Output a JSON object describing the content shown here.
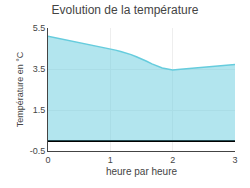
{
  "chart_data": {
    "type": "area",
    "title": "Evolution de la température",
    "xlabel": "heure par heure",
    "ylabel": "Température en °C",
    "x": [
      0,
      0.083,
      0.167,
      0.25,
      0.333,
      0.417,
      0.5,
      0.583,
      0.667,
      0.75,
      0.833,
      0.917,
      1.0,
      1.083,
      1.167,
      1.25,
      1.333,
      1.417,
      1.5,
      1.583,
      1.667,
      1.75,
      1.833,
      1.917,
      2.0,
      2.083,
      2.167,
      2.25,
      2.333,
      2.417,
      2.5,
      2.583,
      2.667,
      2.75,
      2.833,
      2.917,
      3.0
    ],
    "values": [
      5.1,
      5.05,
      5.0,
      4.95,
      4.9,
      4.85,
      4.8,
      4.75,
      4.7,
      4.65,
      4.6,
      4.55,
      4.5,
      4.42,
      4.35,
      4.28,
      4.2,
      4.1,
      4.0,
      3.88,
      3.75,
      3.65,
      3.55,
      3.5,
      3.45,
      3.48,
      3.5,
      3.52,
      3.53,
      3.55,
      3.57,
      3.6,
      3.63,
      3.65,
      3.67,
      3.7,
      3.72
    ],
    "color": "#66ccdd",
    "xlim": [
      0,
      3
    ],
    "ylim": [
      -0.5,
      5.5
    ],
    "xticks": [
      0,
      1,
      2,
      3
    ],
    "yticks": [
      -0.5,
      1.5,
      3.5,
      5.5
    ],
    "grid": true
  }
}
